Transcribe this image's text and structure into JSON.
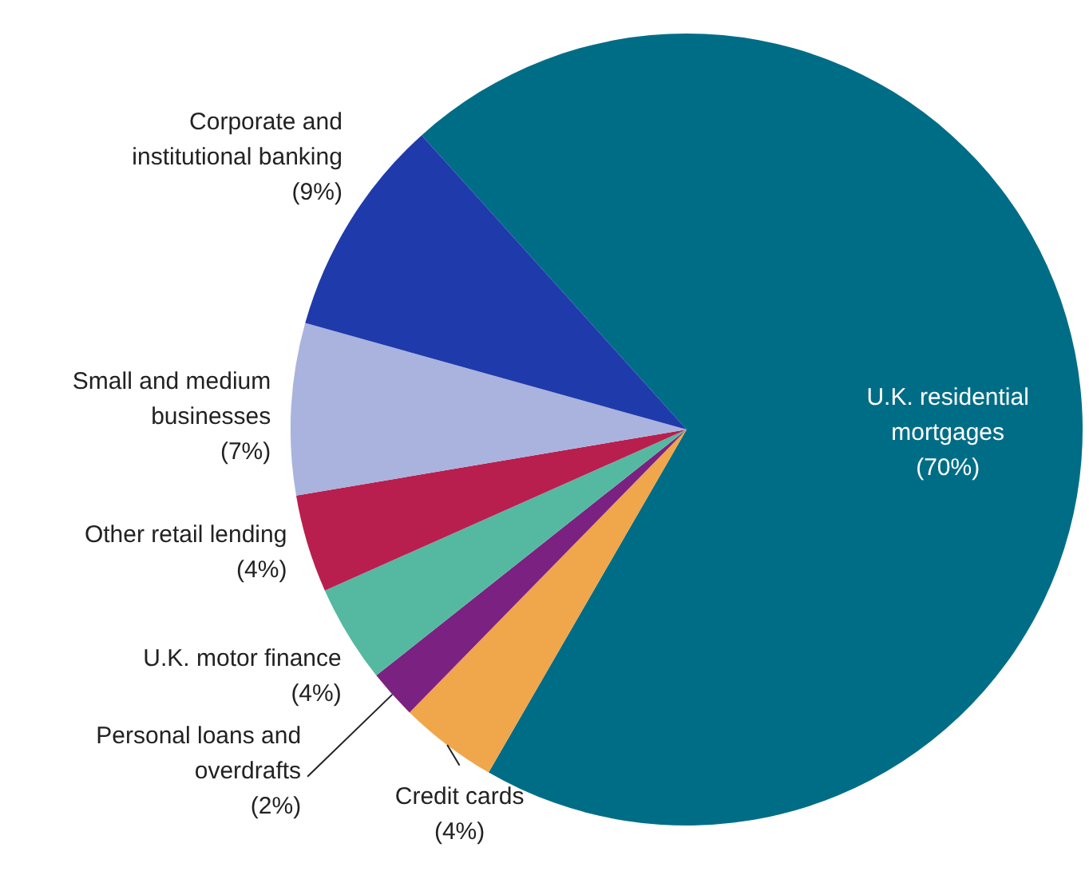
{
  "chart_data": {
    "type": "pie",
    "categories": [
      "U.K. residential mortgages",
      "Credit cards",
      "Personal loans and overdrafts",
      "U.K. motor finance",
      "Other retail lending",
      "Small and medium businesses",
      "Corporate and institutional banking"
    ],
    "values": [
      70,
      4,
      2,
      4,
      4,
      7,
      9
    ],
    "colors": [
      "#006d87",
      "#f0a64a",
      "#7b2181",
      "#54b9a0",
      "#b81f4f",
      "#a9b3dd",
      "#1f3aab"
    ],
    "value_labels": [
      "(70%)",
      "(4%)",
      "(2%)",
      "(4%)",
      "(4%)",
      "(7%)",
      "(9%)"
    ]
  }
}
